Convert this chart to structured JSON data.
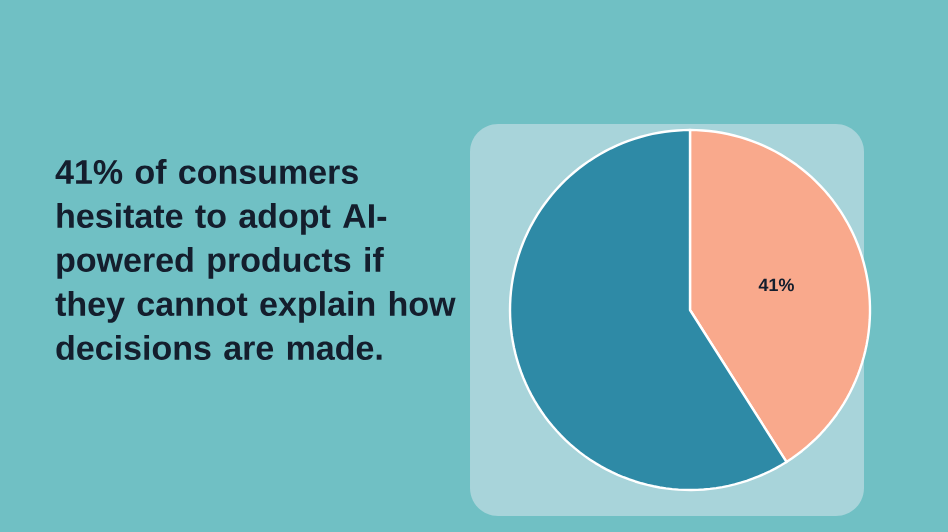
{
  "chart_data": {
    "type": "pie",
    "title": "41% of consumers hesitate to adopt AI-powered products if they cannot explain how decisions are made.",
    "categories": [
      null,
      null
    ],
    "values": [
      41,
      59
    ],
    "colors": [
      "#f9a98c",
      "#2e8aa6"
    ],
    "value_labels": [
      "41%",
      null
    ]
  }
}
